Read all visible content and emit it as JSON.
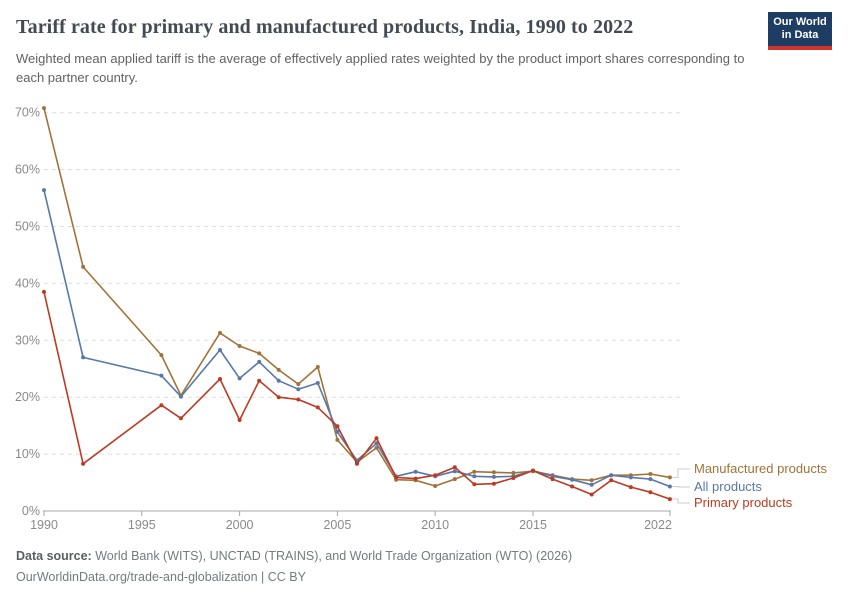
{
  "header": {
    "title": "Tariff rate for primary and manufactured products, India, 1990 to 2022",
    "subtitle": "Weighted mean applied tariff is the average of effectively applied rates weighted by the product import shares corresponding to each partner country.",
    "logo": {
      "line1": "Our World",
      "line2": "in Data"
    }
  },
  "chart_data": {
    "type": "line",
    "title": "Tariff rate for primary and manufactured products, India, 1990 to 2022",
    "xlabel": "",
    "ylabel": "",
    "x": [
      1990,
      1992,
      1996,
      1997,
      1999,
      2000,
      2001,
      2002,
      2003,
      2004,
      2005,
      2006,
      2007,
      2008,
      2009,
      2010,
      2011,
      2012,
      2013,
      2014,
      2015,
      2016,
      2017,
      2018,
      2019,
      2020,
      2021,
      2022
    ],
    "series": [
      {
        "name": "Manufactured products",
        "color": "#a17339",
        "values": [
          70.8,
          42.9,
          27.4,
          20.3,
          31.3,
          29.0,
          27.7,
          24.8,
          22.3,
          25.3,
          12.5,
          8.6,
          11.1,
          5.5,
          5.4,
          4.4,
          5.6,
          6.9,
          6.8,
          6.7,
          7.0,
          6.3,
          5.6,
          5.4,
          6.3,
          6.3,
          6.5,
          5.9
        ]
      },
      {
        "name": "All products",
        "color": "#5878ab",
        "values": [
          56.4,
          27.0,
          23.8,
          20.1,
          28.3,
          23.3,
          26.2,
          22.9,
          21.4,
          22.5,
          13.9,
          8.9,
          11.9,
          6.1,
          6.9,
          6.1,
          7.0,
          6.1,
          6.0,
          6.1,
          7.1,
          6.1,
          5.5,
          4.6,
          6.3,
          5.9,
          5.6,
          4.3
        ]
      },
      {
        "name": "Primary products",
        "color": "#bd3a21",
        "values": [
          38.5,
          8.3,
          18.6,
          16.3,
          23.2,
          16.0,
          22.9,
          20.0,
          19.6,
          18.2,
          14.9,
          8.3,
          12.8,
          5.9,
          5.7,
          6.3,
          7.7,
          4.7,
          4.8,
          5.8,
          7.1,
          5.6,
          4.3,
          2.9,
          5.4,
          4.2,
          3.3,
          2.1
        ]
      }
    ],
    "ylim": [
      0,
      70
    ],
    "yticks": [
      0,
      10,
      20,
      30,
      40,
      50,
      60,
      70
    ],
    "ytick_suffix": "%",
    "xticks": [
      1990,
      1995,
      2000,
      2005,
      2010,
      2015,
      2022
    ],
    "grid": "horizontal-dashed",
    "legend_position": "right-end-labels",
    "axis_color": "#a8a8a8",
    "grid_color": "#dedede",
    "tick_label_color": "#8a8a8a",
    "connector_color": "#cccccc"
  },
  "footer": {
    "datasource_label": "Data source:",
    "datasource_text": " World Bank (WITS), UNCTAD (TRAINS), and World Trade Organization (WTO) (2026)",
    "link_line": "OurWorldinData.org/trade-and-globalization | CC BY"
  }
}
